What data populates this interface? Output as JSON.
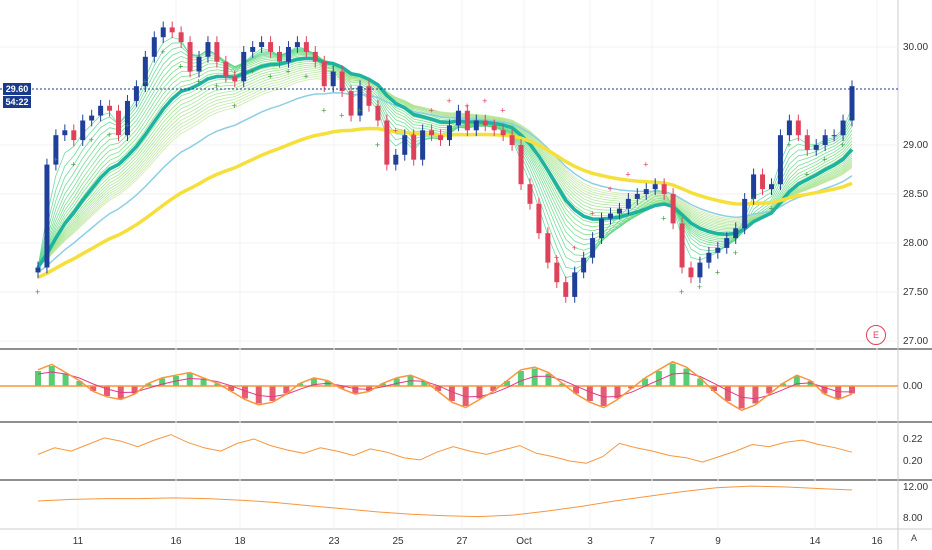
{
  "chart_data": [
    {
      "type": "candlestick",
      "title": "",
      "x_tick_labels": [
        "11",
        "16",
        "18",
        "23",
        "25",
        "27",
        "Oct",
        "3",
        "7",
        "9",
        "14",
        "16"
      ],
      "y_ticks": [
        27.0,
        27.5,
        28.0,
        28.5,
        29.0,
        30.0
      ],
      "ylim": [
        27.0,
        30.3
      ],
      "last_price": "29.60",
      "countdown": "54:22",
      "marker": "E",
      "close_series": [
        27.75,
        28.8,
        29.1,
        29.15,
        29.05,
        29.25,
        29.3,
        29.4,
        29.35,
        29.1,
        29.45,
        29.6,
        29.9,
        30.1,
        30.2,
        30.15,
        30.05,
        29.75,
        29.9,
        30.05,
        29.85,
        29.7,
        29.65,
        29.95,
        30.0,
        30.05,
        29.95,
        29.85,
        30.0,
        30.05,
        29.95,
        29.85,
        29.6,
        29.75,
        29.55,
        29.3,
        29.6,
        29.4,
        29.25,
        28.8,
        28.9,
        29.1,
        28.85,
        29.15,
        29.1,
        29.05,
        29.2,
        29.35,
        29.15,
        29.25,
        29.2,
        29.15,
        29.1,
        29.0,
        28.6,
        28.4,
        28.1,
        27.8,
        27.6,
        27.45,
        27.7,
        27.85,
        28.05,
        28.25,
        28.3,
        28.35,
        28.45,
        28.5,
        28.55,
        28.6,
        28.5,
        28.2,
        27.75,
        27.65,
        27.8,
        27.9,
        27.95,
        28.05,
        28.15,
        28.45,
        28.7,
        28.55,
        28.6,
        29.1,
        29.25,
        29.1,
        28.95,
        29.0,
        29.1,
        29.1,
        29.25,
        29.6
      ]
    },
    {
      "type": "histogram",
      "title": "",
      "y_ticks": [
        0.0
      ],
      "values": [
        0.06,
        0.08,
        0.05,
        0.02,
        -0.02,
        -0.04,
        -0.05,
        -0.03,
        0.01,
        0.03,
        0.04,
        0.05,
        0.03,
        0.01,
        -0.02,
        -0.05,
        -0.07,
        -0.06,
        -0.03,
        0.01,
        0.03,
        0.02,
        -0.01,
        -0.03,
        -0.02,
        0.01,
        0.03,
        0.04,
        0.02,
        -0.02,
        -0.06,
        -0.08,
        -0.05,
        -0.02,
        0.02,
        0.06,
        0.07,
        0.05,
        0.01,
        -0.03,
        -0.06,
        -0.08,
        -0.05,
        -0.01,
        0.03,
        0.06,
        0.09,
        0.07,
        0.03,
        -0.02,
        -0.06,
        -0.09,
        -0.07,
        -0.03,
        0.01,
        0.04,
        0.02,
        -0.03,
        -0.05,
        -0.03
      ]
    },
    {
      "type": "line",
      "title": "",
      "y_ticks": [
        0.2,
        0.22
      ],
      "ylim": [
        0.19,
        0.23
      ],
      "values": [
        0.206,
        0.212,
        0.209,
        0.215,
        0.221,
        0.218,
        0.213,
        0.219,
        0.224,
        0.217,
        0.212,
        0.209,
        0.216,
        0.22,
        0.214,
        0.21,
        0.207,
        0.212,
        0.209,
        0.205,
        0.211,
        0.208,
        0.203,
        0.201,
        0.208,
        0.213,
        0.209,
        0.206,
        0.21,
        0.214,
        0.207,
        0.204,
        0.2,
        0.198,
        0.204,
        0.216,
        0.212,
        0.209,
        0.205,
        0.203,
        0.199,
        0.204,
        0.209,
        0.215,
        0.213,
        0.217,
        0.219,
        0.215,
        0.212,
        0.208
      ]
    },
    {
      "type": "line",
      "title": "",
      "y_ticks": [
        8.0,
        12.0
      ],
      "ylim": [
        7.0,
        12.5
      ],
      "values": [
        10.2,
        10.4,
        10.5,
        10.5,
        10.6,
        10.5,
        10.3,
        10.0,
        9.6,
        9.2,
        8.8,
        8.5,
        8.3,
        8.2,
        8.4,
        8.9,
        9.5,
        10.2,
        10.8,
        11.4,
        11.9,
        12.1,
        12.0,
        11.8,
        11.6
      ]
    }
  ],
  "x_axis_label": "A",
  "colors": {
    "up": "#1f3f99",
    "down": "#e0415a",
    "ema_teal": "#1db3a0",
    "ma_yellow": "#f5e03b",
    "ma_lightblue": "#8ccfe3",
    "stops_red": "#e0415a",
    "stops_green": "#3a9a3a",
    "osc_orange": "#f7963d",
    "osc_pink": "#e03a85"
  }
}
